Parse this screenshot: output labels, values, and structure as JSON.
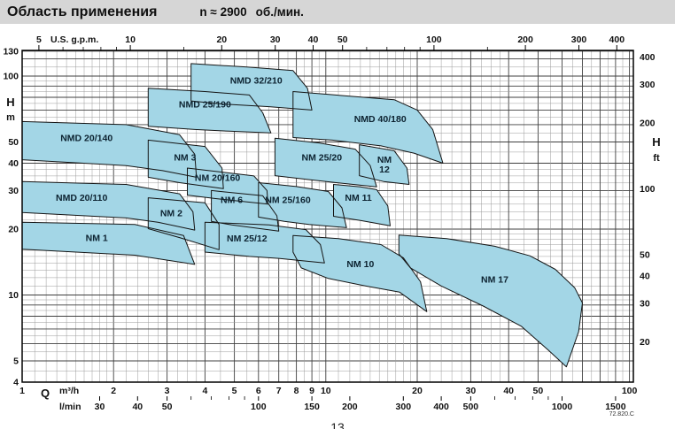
{
  "title": {
    "main": "Область применения",
    "speed": "n ≈ 2900",
    "unit": "об./мин."
  },
  "page_number": "13",
  "colors": {
    "title_bar_bg": "#d6d6d6",
    "region_fill": "#a3d6e6",
    "region_stroke": "#141414",
    "grid_minor": "#9b9b9b",
    "grid_major": "#3f3f3f",
    "border": "#000000"
  },
  "chart_data": {
    "type": "area",
    "x_scale": "log",
    "y_scale": "log",
    "x_range_m3h": [
      1,
      103
    ],
    "y_range_m": [
      4,
      131
    ],
    "note": "72.820.C",
    "axes": {
      "top": {
        "title": "U.S. g.p.m.",
        "unit_to_m3h": 0.2271,
        "labeled": [
          5,
          10,
          20,
          30,
          40,
          50,
          100,
          200,
          300,
          400
        ],
        "minor_ticks": [
          6,
          7,
          8,
          9,
          15,
          60,
          70,
          80,
          90,
          150
        ]
      },
      "left": {
        "title": "H",
        "unit": "m",
        "labeled": [
          130,
          100,
          50,
          40,
          30,
          20,
          10,
          5,
          4
        ]
      },
      "right": {
        "title": "H",
        "unit": "ft",
        "ft_to_m": 0.3048,
        "labeled": [
          400,
          300,
          200,
          100,
          50,
          40,
          30,
          20
        ]
      },
      "bottom_primary": {
        "title": "Q",
        "unit": "m³/h",
        "labeled": [
          1,
          2,
          3,
          4,
          5,
          6,
          7,
          8,
          9,
          10,
          20,
          30,
          40,
          50,
          100
        ]
      },
      "bottom_secondary": {
        "unit": "l/min",
        "lmin_to_m3h": 0.06,
        "labeled": [
          30,
          40,
          50,
          100,
          150,
          200,
          300,
          400,
          500,
          1000,
          1500
        ],
        "minor_ticks": [
          60,
          70,
          80,
          90,
          600,
          700,
          800,
          900
        ]
      }
    },
    "regions": [
      {
        "name": "NMD 32/210",
        "label_at": [
          5.9,
          96
        ],
        "points": [
          [
            3.6,
            114
          ],
          [
            5.5,
            110
          ],
          [
            7.8,
            106
          ],
          [
            8.7,
            88
          ],
          [
            9,
            70
          ],
          [
            6.5,
            72.5
          ],
          [
            4.6,
            74.5
          ],
          [
            3.6,
            77
          ]
        ]
      },
      {
        "name": "NMD 25/190",
        "label_at": [
          4,
          74.5
        ],
        "points": [
          [
            2.6,
            88
          ],
          [
            4,
            85
          ],
          [
            5.6,
            82
          ],
          [
            6.2,
            68
          ],
          [
            6.6,
            55
          ],
          [
            4.8,
            56
          ],
          [
            3.7,
            57
          ],
          [
            2.6,
            59
          ]
        ]
      },
      {
        "name": "NMD 40/180",
        "label_at": [
          15.1,
          64
        ],
        "points": [
          [
            7.8,
            85
          ],
          [
            12,
            81
          ],
          [
            16.8,
            78
          ],
          [
            20,
            70
          ],
          [
            22.5,
            57
          ],
          [
            24.3,
            40
          ],
          [
            19.5,
            44.5
          ],
          [
            15.2,
            48
          ],
          [
            10.5,
            51
          ],
          [
            7.8,
            52.4
          ]
        ]
      },
      {
        "name": "NMD 20/140",
        "label_at": [
          1.63,
          52.3
        ],
        "points": [
          [
            1,
            62
          ],
          [
            2.2,
            60
          ],
          [
            3.3,
            54
          ],
          [
            3.7,
            44
          ],
          [
            3.75,
            34.5
          ],
          [
            2.9,
            37
          ],
          [
            2.2,
            39
          ],
          [
            1,
            41.5
          ]
        ]
      },
      {
        "name": "NMD 20/110",
        "label_at": [
          1.57,
          28
        ],
        "points": [
          [
            1,
            33
          ],
          [
            2.2,
            32
          ],
          [
            3.3,
            29
          ],
          [
            3.65,
            24
          ],
          [
            3.7,
            19.8
          ],
          [
            2.8,
            21.5
          ],
          [
            2.2,
            22.5
          ],
          [
            1,
            23.8
          ]
        ]
      },
      {
        "name": "NM 1",
        "label_at": [
          1.76,
          18.3
        ],
        "points": [
          [
            1,
            21.5
          ],
          [
            2.35,
            21
          ],
          [
            3.4,
            18.7
          ],
          [
            3.7,
            13.8
          ],
          [
            2.35,
            15.2
          ],
          [
            1,
            16.2
          ]
        ]
      },
      {
        "name": "NM 2",
        "label_at": [
          3.1,
          23.8
        ],
        "points": [
          [
            2.6,
            27.8
          ],
          [
            4,
            26.4
          ],
          [
            4.45,
            21
          ],
          [
            4.45,
            16.1
          ],
          [
            3.3,
            18.3
          ],
          [
            2.6,
            20.1
          ]
        ]
      },
      {
        "name": "NM 3",
        "label_at": [
          3.44,
          42.7
        ],
        "points": [
          [
            2.6,
            51
          ],
          [
            4,
            47.7
          ],
          [
            4.55,
            38
          ],
          [
            4.6,
            30.6
          ],
          [
            3.3,
            32.6
          ],
          [
            2.6,
            34.5
          ]
        ]
      },
      {
        "name": "NM 20/160",
        "label_at": [
          4.4,
          34.5
        ],
        "points": [
          [
            3.5,
            38
          ],
          [
            5.8,
            35
          ],
          [
            6.4,
            30
          ],
          [
            6.45,
            26
          ],
          [
            4.3,
            27.6
          ],
          [
            3.5,
            28.6
          ]
        ]
      },
      {
        "name": "NM 6",
        "label_at": [
          4.9,
          27.3
        ],
        "points": [
          [
            4.2,
            30
          ],
          [
            6.2,
            28.4
          ],
          [
            6.9,
            23
          ],
          [
            7,
            19.6
          ],
          [
            4.9,
            20.9
          ],
          [
            4.2,
            21.7
          ]
        ]
      },
      {
        "name": "NM 25/12",
        "label_at": [
          5.5,
          18.2
        ],
        "points": [
          [
            4,
            21.5
          ],
          [
            6.5,
            20.9
          ],
          [
            8.6,
            19.9
          ],
          [
            9.6,
            17
          ],
          [
            9.9,
            14
          ],
          [
            7,
            14.7
          ],
          [
            5.6,
            15
          ],
          [
            4,
            15.7
          ]
        ]
      },
      {
        "name": "NM 25/160",
        "label_at": [
          7.5,
          27.3
        ],
        "points": [
          [
            6,
            32.6
          ],
          [
            8,
            31.3
          ],
          [
            10.2,
            29.7
          ],
          [
            11.3,
            25
          ],
          [
            11.7,
            20.3
          ],
          [
            8.8,
            21
          ],
          [
            7.3,
            21.7
          ],
          [
            6,
            22.7
          ]
        ]
      },
      {
        "name": "NM 25/20",
        "label_at": [
          9.7,
          42.7
        ],
        "points": [
          [
            6.8,
            52
          ],
          [
            9.5,
            49.5
          ],
          [
            12.5,
            46.4
          ],
          [
            14,
            39
          ],
          [
            14.7,
            31.2
          ],
          [
            11,
            32.5
          ],
          [
            8.9,
            33.6
          ],
          [
            6.8,
            35.1
          ]
        ]
      },
      {
        "name": "NM 11",
        "label_at": [
          12.8,
          28
        ],
        "points": [
          [
            10.6,
            32
          ],
          [
            13,
            31.2
          ],
          [
            14.7,
            30.3
          ],
          [
            16,
            25.5
          ],
          [
            16.3,
            20.7
          ],
          [
            13,
            21.9
          ],
          [
            10.6,
            22.9
          ]
        ]
      },
      {
        "name": "NM 12",
        "label_at": [
          15.6,
          39.6
        ],
        "label_lines": [
          "NM",
          "12"
        ],
        "points": [
          [
            12.9,
            48.6
          ],
          [
            16.8,
            45.6
          ],
          [
            18.5,
            38
          ],
          [
            18.8,
            32
          ],
          [
            15.5,
            33
          ],
          [
            12.9,
            35.1
          ]
        ]
      },
      {
        "name": "NM 10",
        "label_at": [
          13,
          13.9
        ],
        "points": [
          [
            7.8,
            18.7
          ],
          [
            11,
            18.1
          ],
          [
            15.2,
            17
          ],
          [
            18,
            14.8
          ],
          [
            20.5,
            11.5
          ],
          [
            21.5,
            8.4
          ],
          [
            17.5,
            10.3
          ],
          [
            13.5,
            11
          ],
          [
            10.2,
            11.9
          ],
          [
            8.3,
            13.3
          ],
          [
            7.8,
            15.7
          ]
        ]
      },
      {
        "name": "NM 17",
        "label_at": [
          36,
          11.8
        ],
        "points": [
          [
            17.4,
            18.8
          ],
          [
            25,
            18.1
          ],
          [
            36,
            16.7
          ],
          [
            47,
            15.1
          ],
          [
            57,
            13.1
          ],
          [
            66,
            10.8
          ],
          [
            70,
            9.2
          ],
          [
            68,
            6.8
          ],
          [
            62,
            4.7
          ],
          [
            54,
            5.6
          ],
          [
            44,
            7.2
          ],
          [
            33,
            8.9
          ],
          [
            24,
            11
          ],
          [
            19,
            13.3
          ],
          [
            17.4,
            15.4
          ]
        ]
      }
    ]
  }
}
